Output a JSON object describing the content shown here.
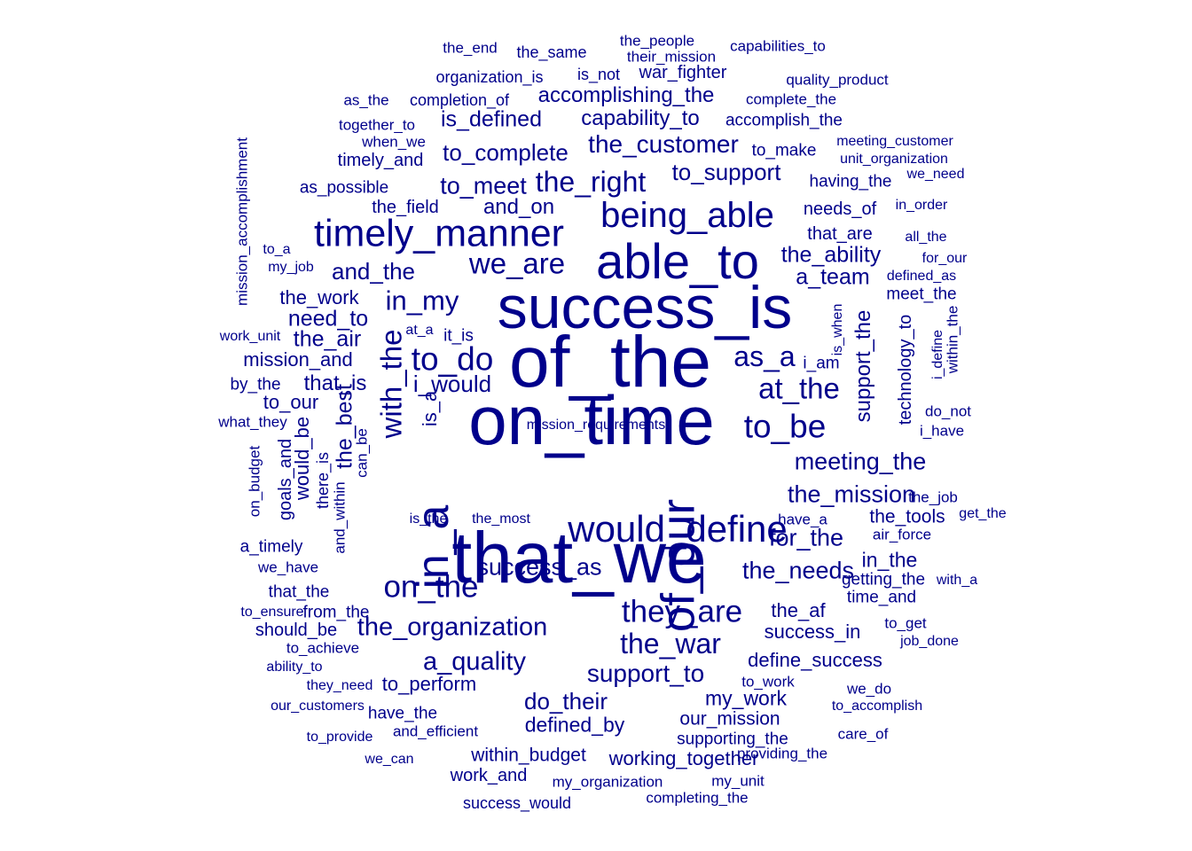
{
  "colors": {
    "word": "#00008B",
    "background": "#FFFFFF"
  },
  "words": [
    {
      "text": "the_end",
      "weight": 1,
      "rotated": false
    },
    {
      "text": "the_same",
      "weight": 1,
      "rotated": false
    },
    {
      "text": "the_people",
      "weight": 1,
      "rotated": false
    },
    {
      "text": "their_mission",
      "weight": 1,
      "rotated": false
    },
    {
      "text": "capabilities_to",
      "weight": 1,
      "rotated": false
    },
    {
      "text": "organization_is",
      "weight": 1,
      "rotated": false
    },
    {
      "text": "is_not",
      "weight": 1,
      "rotated": false
    },
    {
      "text": "war_fighter",
      "weight": 1,
      "rotated": false
    },
    {
      "text": "quality_product",
      "weight": 1,
      "rotated": false
    },
    {
      "text": "as_the",
      "weight": 1,
      "rotated": false
    },
    {
      "text": "completion_of",
      "weight": 1,
      "rotated": false
    },
    {
      "text": "accomplishing_the",
      "weight": 2,
      "rotated": false
    },
    {
      "text": "complete_the",
      "weight": 1,
      "rotated": false
    },
    {
      "text": "together_to",
      "weight": 1,
      "rotated": false
    },
    {
      "text": "is_defined",
      "weight": 2,
      "rotated": false
    },
    {
      "text": "capability_to",
      "weight": 2,
      "rotated": false
    },
    {
      "text": "accomplish_the",
      "weight": 1,
      "rotated": false
    },
    {
      "text": "when_we",
      "weight": 1,
      "rotated": false
    },
    {
      "text": "timely_and",
      "weight": 1,
      "rotated": false
    },
    {
      "text": "to_complete",
      "weight": 2,
      "rotated": false
    },
    {
      "text": "the_customer",
      "weight": 2,
      "rotated": false
    },
    {
      "text": "to_make",
      "weight": 1,
      "rotated": false
    },
    {
      "text": "meeting_customer",
      "weight": 1,
      "rotated": false
    },
    {
      "text": "unit_organization",
      "weight": 1,
      "rotated": false
    },
    {
      "text": "to_support",
      "weight": 2,
      "rotated": false
    },
    {
      "text": "having_the",
      "weight": 1,
      "rotated": false
    },
    {
      "text": "we_need",
      "weight": 1,
      "rotated": false
    },
    {
      "text": "mission_accomplishment",
      "weight": 1,
      "rotated": true
    },
    {
      "text": "as_possible",
      "weight": 1,
      "rotated": false
    },
    {
      "text": "to_meet",
      "weight": 2,
      "rotated": false
    },
    {
      "text": "the_right",
      "weight": 3,
      "rotated": false
    },
    {
      "text": "the_field",
      "weight": 1,
      "rotated": false
    },
    {
      "text": "and_on",
      "weight": 2,
      "rotated": false
    },
    {
      "text": "being_able",
      "weight": 4,
      "rotated": false
    },
    {
      "text": "needs_of",
      "weight": 1,
      "rotated": false
    },
    {
      "text": "in_order",
      "weight": 1,
      "rotated": false
    },
    {
      "text": "timely_manner",
      "weight": 4,
      "rotated": false
    },
    {
      "text": "that_are",
      "weight": 1,
      "rotated": false
    },
    {
      "text": "all_the",
      "weight": 1,
      "rotated": false
    },
    {
      "text": "to_a",
      "weight": 1,
      "rotated": false
    },
    {
      "text": "able_to",
      "weight": 5,
      "rotated": false
    },
    {
      "text": "we_are",
      "weight": 3,
      "rotated": false
    },
    {
      "text": "the_ability",
      "weight": 2,
      "rotated": false
    },
    {
      "text": "for_our",
      "weight": 1,
      "rotated": false
    },
    {
      "text": "my_job",
      "weight": 1,
      "rotated": false
    },
    {
      "text": "and_the",
      "weight": 2,
      "rotated": false
    },
    {
      "text": "a_team",
      "weight": 2,
      "rotated": false
    },
    {
      "text": "defined_as",
      "weight": 1,
      "rotated": false
    },
    {
      "text": "the_work",
      "weight": 1,
      "rotated": false
    },
    {
      "text": "in_my",
      "weight": 3,
      "rotated": false
    },
    {
      "text": "success_is",
      "weight": 6,
      "rotated": false
    },
    {
      "text": "meet_the",
      "weight": 1,
      "rotated": false
    },
    {
      "text": "need_to",
      "weight": 2,
      "rotated": false
    },
    {
      "text": "support_the",
      "weight": 2,
      "rotated": true
    },
    {
      "text": "is_when",
      "weight": 1,
      "rotated": true
    },
    {
      "text": "technology_to",
      "weight": 2,
      "rotated": true
    },
    {
      "text": "within_the",
      "weight": 1,
      "rotated": true
    },
    {
      "text": "work_unit",
      "weight": 1,
      "rotated": false
    },
    {
      "text": "the_air",
      "weight": 2,
      "rotated": false
    },
    {
      "text": "at_a",
      "weight": 1,
      "rotated": false
    },
    {
      "text": "it_is",
      "weight": 1,
      "rotated": false
    },
    {
      "text": "of_the",
      "weight": 7,
      "rotated": false
    },
    {
      "text": "as_a",
      "weight": 3,
      "rotated": false
    },
    {
      "text": "i_define",
      "weight": 1,
      "rotated": true
    },
    {
      "text": "mission_and",
      "weight": 1,
      "rotated": false
    },
    {
      "text": "to_do",
      "weight": 3,
      "rotated": false
    },
    {
      "text": "i_am",
      "weight": 1,
      "rotated": false
    },
    {
      "text": "with_the",
      "weight": 3,
      "rotated": true
    },
    {
      "text": "by_the",
      "weight": 1,
      "rotated": false
    },
    {
      "text": "that_is",
      "weight": 2,
      "rotated": false
    },
    {
      "text": "i_would",
      "weight": 2,
      "rotated": false
    },
    {
      "text": "at_the",
      "weight": 3,
      "rotated": false
    },
    {
      "text": "to_our",
      "weight": 1,
      "rotated": false
    },
    {
      "text": "do_not",
      "weight": 1,
      "rotated": false
    },
    {
      "text": "is_a",
      "weight": 2,
      "rotated": true
    },
    {
      "text": "the_best",
      "weight": 2,
      "rotated": true
    },
    {
      "text": "on_time",
      "weight": 7,
      "rotated": false
    },
    {
      "text": "what_they",
      "weight": 1,
      "rotated": false
    },
    {
      "text": "to_be",
      "weight": 3,
      "rotated": false
    },
    {
      "text": "i_have",
      "weight": 1,
      "rotated": false
    },
    {
      "text": "would_be",
      "weight": 2,
      "rotated": true
    },
    {
      "text": "can_be",
      "weight": 1,
      "rotated": true
    },
    {
      "text": "goals_and",
      "weight": 1,
      "rotated": true
    },
    {
      "text": "there_is",
      "weight": 1,
      "rotated": true
    },
    {
      "text": "on_budget",
      "weight": 1,
      "rotated": true
    },
    {
      "text": "meeting_the",
      "weight": 2,
      "rotated": false
    },
    {
      "text": "the_mission",
      "weight": 7,
      "rotated": false
    },
    {
      "text": "the_job",
      "weight": 2,
      "rotated": false
    },
    {
      "text": "get_the",
      "weight": 1,
      "rotated": false
    },
    {
      "text": "and_within",
      "weight": 1,
      "rotated": true
    },
    {
      "text": "is_the",
      "weight": 1,
      "rotated": false
    },
    {
      "text": "the_most",
      "weight": 1,
      "rotated": false
    },
    {
      "text": "have_a",
      "weight": 1,
      "rotated": false
    },
    {
      "text": "the_tools",
      "weight": 1,
      "rotated": false
    },
    {
      "text": "would_define",
      "weight": 2,
      "rotated": false
    },
    {
      "text": "for_the",
      "weight": 3,
      "rotated": false
    },
    {
      "text": "air_force",
      "weight": 2,
      "rotated": false
    },
    {
      "text": "that_we",
      "weight": 1,
      "rotated": false
    },
    {
      "text": "in_a",
      "weight": 7,
      "rotated": true
    },
    {
      "text": "a_timely",
      "weight": 5,
      "rotated": false
    },
    {
      "text": "success_as",
      "weight": 1,
      "rotated": false
    },
    {
      "text": "of_our",
      "weight": 2,
      "rotated": true
    },
    {
      "text": "in_the",
      "weight": 5,
      "rotated": false
    },
    {
      "text": "we_have",
      "weight": 2,
      "rotated": false
    },
    {
      "text": "the_needs",
      "weight": 1,
      "rotated": false
    },
    {
      "text": "on_the",
      "weight": 2,
      "rotated": false
    },
    {
      "text": "getting_the",
      "weight": 3,
      "rotated": false
    },
    {
      "text": "with_a",
      "weight": 1,
      "rotated": false
    },
    {
      "text": "that_the",
      "weight": 1,
      "rotated": false
    },
    {
      "text": "they_are",
      "weight": 1,
      "rotated": false
    },
    {
      "text": "time_and",
      "weight": 3,
      "rotated": false
    },
    {
      "text": "to_ensure",
      "weight": 1,
      "rotated": false
    },
    {
      "text": "from_the",
      "weight": 1,
      "rotated": false
    },
    {
      "text": "the_af",
      "weight": 1,
      "rotated": false
    },
    {
      "text": "to_get",
      "weight": 2,
      "rotated": false
    },
    {
      "text": "should_be",
      "weight": 1,
      "rotated": false
    },
    {
      "text": "the_organization",
      "weight": 1,
      "rotated": false
    },
    {
      "text": "success_in",
      "weight": 2,
      "rotated": false
    },
    {
      "text": "job_done",
      "weight": 2,
      "rotated": false
    },
    {
      "text": "to_achieve",
      "weight": 1,
      "rotated": false
    },
    {
      "text": "the_war",
      "weight": 1,
      "rotated": false
    },
    {
      "text": "ability_to",
      "weight": 3,
      "rotated": false
    },
    {
      "text": "a_quality",
      "weight": 1,
      "rotated": false
    },
    {
      "text": "define_success",
      "weight": 3,
      "rotated": false
    },
    {
      "text": "support_to",
      "weight": 2,
      "rotated": false
    },
    {
      "text": "they_need",
      "weight": 3,
      "rotated": false
    },
    {
      "text": "to_perform",
      "weight": 1,
      "rotated": false
    },
    {
      "text": "to_work",
      "weight": 2,
      "rotated": false
    },
    {
      "text": "we_do",
      "weight": 1,
      "rotated": false
    },
    {
      "text": "my_work",
      "weight": 1,
      "rotated": false
    },
    {
      "text": "our_customers",
      "weight": 2,
      "rotated": false
    },
    {
      "text": "do_their",
      "weight": 1,
      "rotated": false
    },
    {
      "text": "to_accomplish",
      "weight": 2,
      "rotated": false
    },
    {
      "text": "have_the",
      "weight": 1,
      "rotated": false
    },
    {
      "text": "our_mission",
      "weight": 1,
      "rotated": false
    },
    {
      "text": "to_provide",
      "weight": 1,
      "rotated": false
    },
    {
      "text": "and_efficient",
      "weight": 1,
      "rotated": false
    },
    {
      "text": "defined_by",
      "weight": 1,
      "rotated": false
    },
    {
      "text": "supporting_the",
      "weight": 2,
      "rotated": false
    },
    {
      "text": "care_of",
      "weight": 1,
      "rotated": false
    },
    {
      "text": "within_budget",
      "weight": 1,
      "rotated": false
    },
    {
      "text": "working_together",
      "weight": 1,
      "rotated": false
    },
    {
      "text": "providing_the",
      "weight": 1,
      "rotated": false
    },
    {
      "text": "we_can",
      "weight": 1,
      "rotated": false
    },
    {
      "text": "work_and",
      "weight": 1,
      "rotated": false
    },
    {
      "text": "my_organization",
      "weight": 1,
      "rotated": false
    },
    {
      "text": "my_unit",
      "weight": 1,
      "rotated": false
    },
    {
      "text": "completing_the",
      "weight": 1,
      "rotated": false
    },
    {
      "text": "success_would",
      "weight": 1,
      "rotated": false
    },
    {
      "text": "mission_requirements",
      "weight": 1,
      "rotated": false
    }
  ]
}
